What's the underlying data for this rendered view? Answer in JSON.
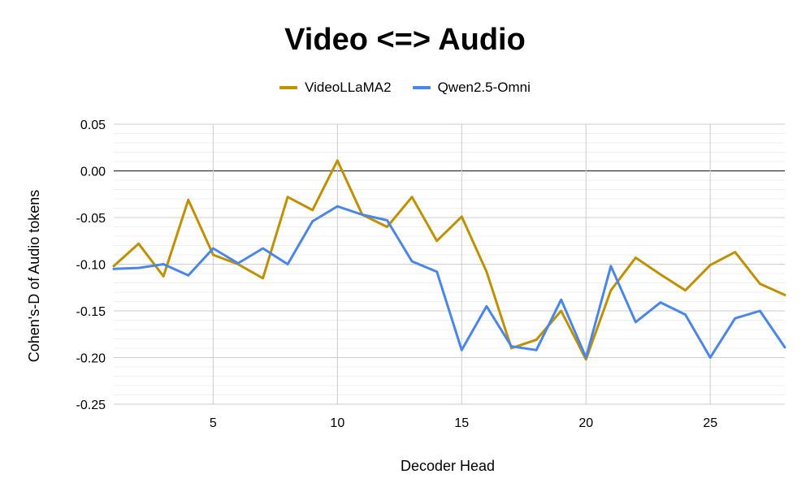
{
  "chart_data": {
    "type": "line",
    "title": "Video <=> Audio",
    "xlabel": "Decoder Head",
    "ylabel": "Cohen's-D of Audio tokens",
    "xlim": [
      1,
      28
    ],
    "ylim": [
      -0.25,
      0.05
    ],
    "x_ticks": [
      5,
      10,
      15,
      20,
      25
    ],
    "y_ticks": [
      0.05,
      0.0,
      -0.05,
      -0.1,
      -0.15,
      -0.2,
      -0.25
    ],
    "x_tick_labels": [
      "5",
      "10",
      "15",
      "20",
      "25"
    ],
    "y_tick_labels": [
      "0.05",
      "0.00",
      "-0.05",
      "-0.10",
      "-0.15",
      "-0.20",
      "-0.25"
    ],
    "grid": true,
    "legend_position": "top-center",
    "x": [
      1,
      2,
      3,
      4,
      5,
      6,
      7,
      8,
      9,
      10,
      11,
      12,
      13,
      14,
      15,
      16,
      17,
      18,
      19,
      20,
      21,
      22,
      23,
      24,
      25,
      26,
      27,
      28
    ],
    "series": [
      {
        "name": "VideoLLaMA2",
        "color": "#bf9000",
        "values": [
          -0.102,
          -0.078,
          -0.113,
          -0.031,
          -0.09,
          -0.1,
          -0.115,
          -0.028,
          -0.042,
          0.011,
          -0.047,
          -0.06,
          -0.028,
          -0.075,
          -0.049,
          -0.108,
          -0.19,
          -0.181,
          -0.15,
          -0.202,
          -0.128,
          -0.093,
          -0.111,
          -0.128,
          -0.101,
          -0.087,
          -0.121,
          -0.133
        ]
      },
      {
        "name": "Qwen2.5-Omni",
        "color": "#4a86e8",
        "values": [
          -0.105,
          -0.104,
          -0.1,
          -0.112,
          -0.083,
          -0.099,
          -0.083,
          -0.1,
          -0.054,
          -0.038,
          -0.047,
          -0.053,
          -0.097,
          -0.108,
          -0.192,
          -0.145,
          -0.188,
          -0.192,
          -0.138,
          -0.2,
          -0.102,
          -0.162,
          -0.141,
          -0.154,
          -0.2,
          -0.158,
          -0.15,
          -0.189
        ]
      }
    ]
  }
}
